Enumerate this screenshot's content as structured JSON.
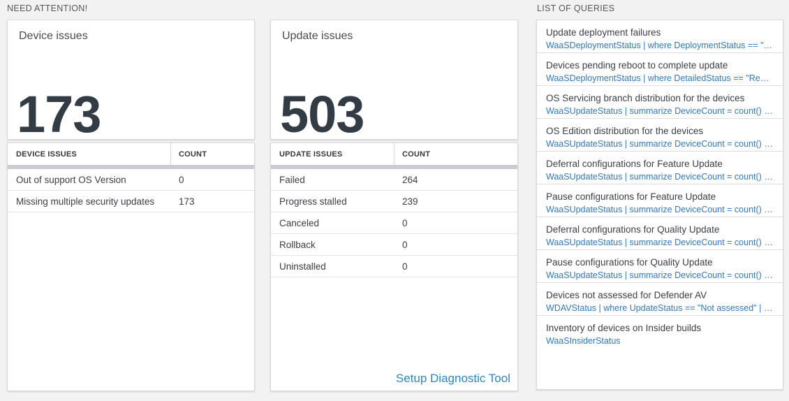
{
  "labels": {
    "need_attention": "NEED ATTENTION!",
    "list_of_queries": "LIST OF QUERIES"
  },
  "device_issues": {
    "card_title": "Device issues",
    "total": "173",
    "table": {
      "col_issue": "DEVICE ISSUES",
      "col_count": "COUNT",
      "rows": [
        {
          "label": "Out of support OS Version",
          "count": "0"
        },
        {
          "label": "Missing multiple security updates",
          "count": "173"
        }
      ]
    }
  },
  "update_issues": {
    "card_title": "Update issues",
    "total": "503",
    "table": {
      "col_issue": "UPDATE ISSUES",
      "col_count": "COUNT",
      "rows": [
        {
          "label": "Failed",
          "count": "264"
        },
        {
          "label": "Progress stalled",
          "count": "239"
        },
        {
          "label": "Canceled",
          "count": "0"
        },
        {
          "label": "Rollback",
          "count": "0"
        },
        {
          "label": "Uninstalled",
          "count": "0"
        }
      ]
    },
    "setup_link_label": "Setup Diagnostic Tool"
  },
  "query_list": {
    "items": [
      {
        "title": "Update deployment failures",
        "query": "WaaSDeploymentStatus | where DeploymentStatus == \"Failed\" |..."
      },
      {
        "title": "Devices pending reboot to complete update",
        "query": "WaaSDeploymentStatus | where DetailedStatus == \"Reboot pend..."
      },
      {
        "title": "OS Servicing branch distribution for the devices",
        "query": "WaaSUpdateStatus | summarize DeviceCount = count() by OSSer..."
      },
      {
        "title": "OS Edition distribution for the devices",
        "query": "WaaSUpdateStatus | summarize DeviceCount = count() by OSEdit..."
      },
      {
        "title": "Deferral configurations for Feature Update",
        "query": "WaaSUpdateStatus | summarize DeviceCount = count() by Featur..."
      },
      {
        "title": "Pause configurations for Feature Update",
        "query": "WaaSUpdateStatus | summarize DeviceCount = count() by Featur..."
      },
      {
        "title": "Deferral configurations for Quality Update",
        "query": "WaaSUpdateStatus | summarize DeviceCount = count() by Qualit..."
      },
      {
        "title": "Pause configurations for Quality Update",
        "query": "WaaSUpdateStatus | summarize DeviceCount = count() by Qualit..."
      },
      {
        "title": "Devices not assessed for Defender AV",
        "query": "WDAVStatus | where UpdateStatus == \"Not assessed\" | render ta..."
      },
      {
        "title": "Inventory of devices on Insider builds",
        "query": "WaaSInsiderStatus"
      }
    ]
  },
  "colors": {
    "background": "#f2f2f2",
    "query_link_blue": "#3279bd",
    "setup_link_blue": "#2e86c4",
    "big_number_text": "#333b44",
    "table_header_bar": "#c9ccd2"
  }
}
